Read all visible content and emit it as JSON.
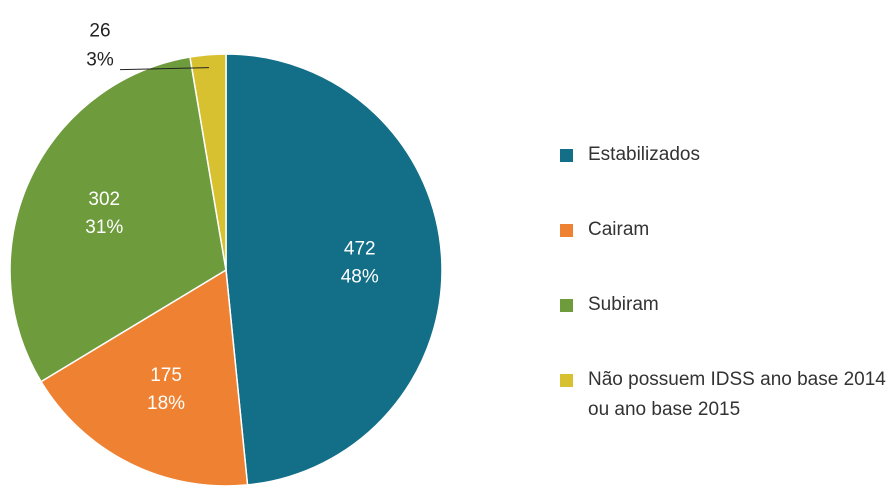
{
  "chart_data": {
    "type": "pie",
    "categories": [
      "Estabilizados",
      "Cairam",
      "Subiram",
      "Não possuem IDSS ano base 2014 ou ano base 2015"
    ],
    "values": [
      472,
      175,
      302,
      26
    ],
    "percent_labels": [
      "48%",
      "18%",
      "31%",
      "3%"
    ],
    "colors": [
      "#136e87",
      "#ef8132",
      "#6e9b3c",
      "#d8c130"
    ],
    "legend": "right"
  }
}
